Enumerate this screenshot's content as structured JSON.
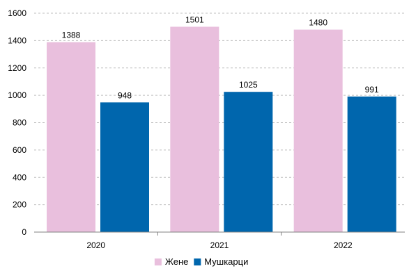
{
  "chart_data": {
    "type": "bar",
    "title": "",
    "xlabel": "",
    "ylabel": "",
    "categories": [
      "2020",
      "2021",
      "2022"
    ],
    "series": [
      {
        "name": "Жене",
        "values": [
          1388,
          1501,
          1480
        ],
        "color": "#e9bfdd"
      },
      {
        "name": "Мушкарци",
        "values": [
          948,
          1025,
          991
        ],
        "color": "#0066ad"
      }
    ],
    "ylim": [
      0,
      1600
    ],
    "yticks": [
      0,
      200,
      400,
      600,
      800,
      1000,
      1200,
      1400,
      1600
    ],
    "grid": true,
    "legend_position": "bottom-center",
    "gridline_color": "#bfbfbf",
    "axis_color": "#808080"
  }
}
